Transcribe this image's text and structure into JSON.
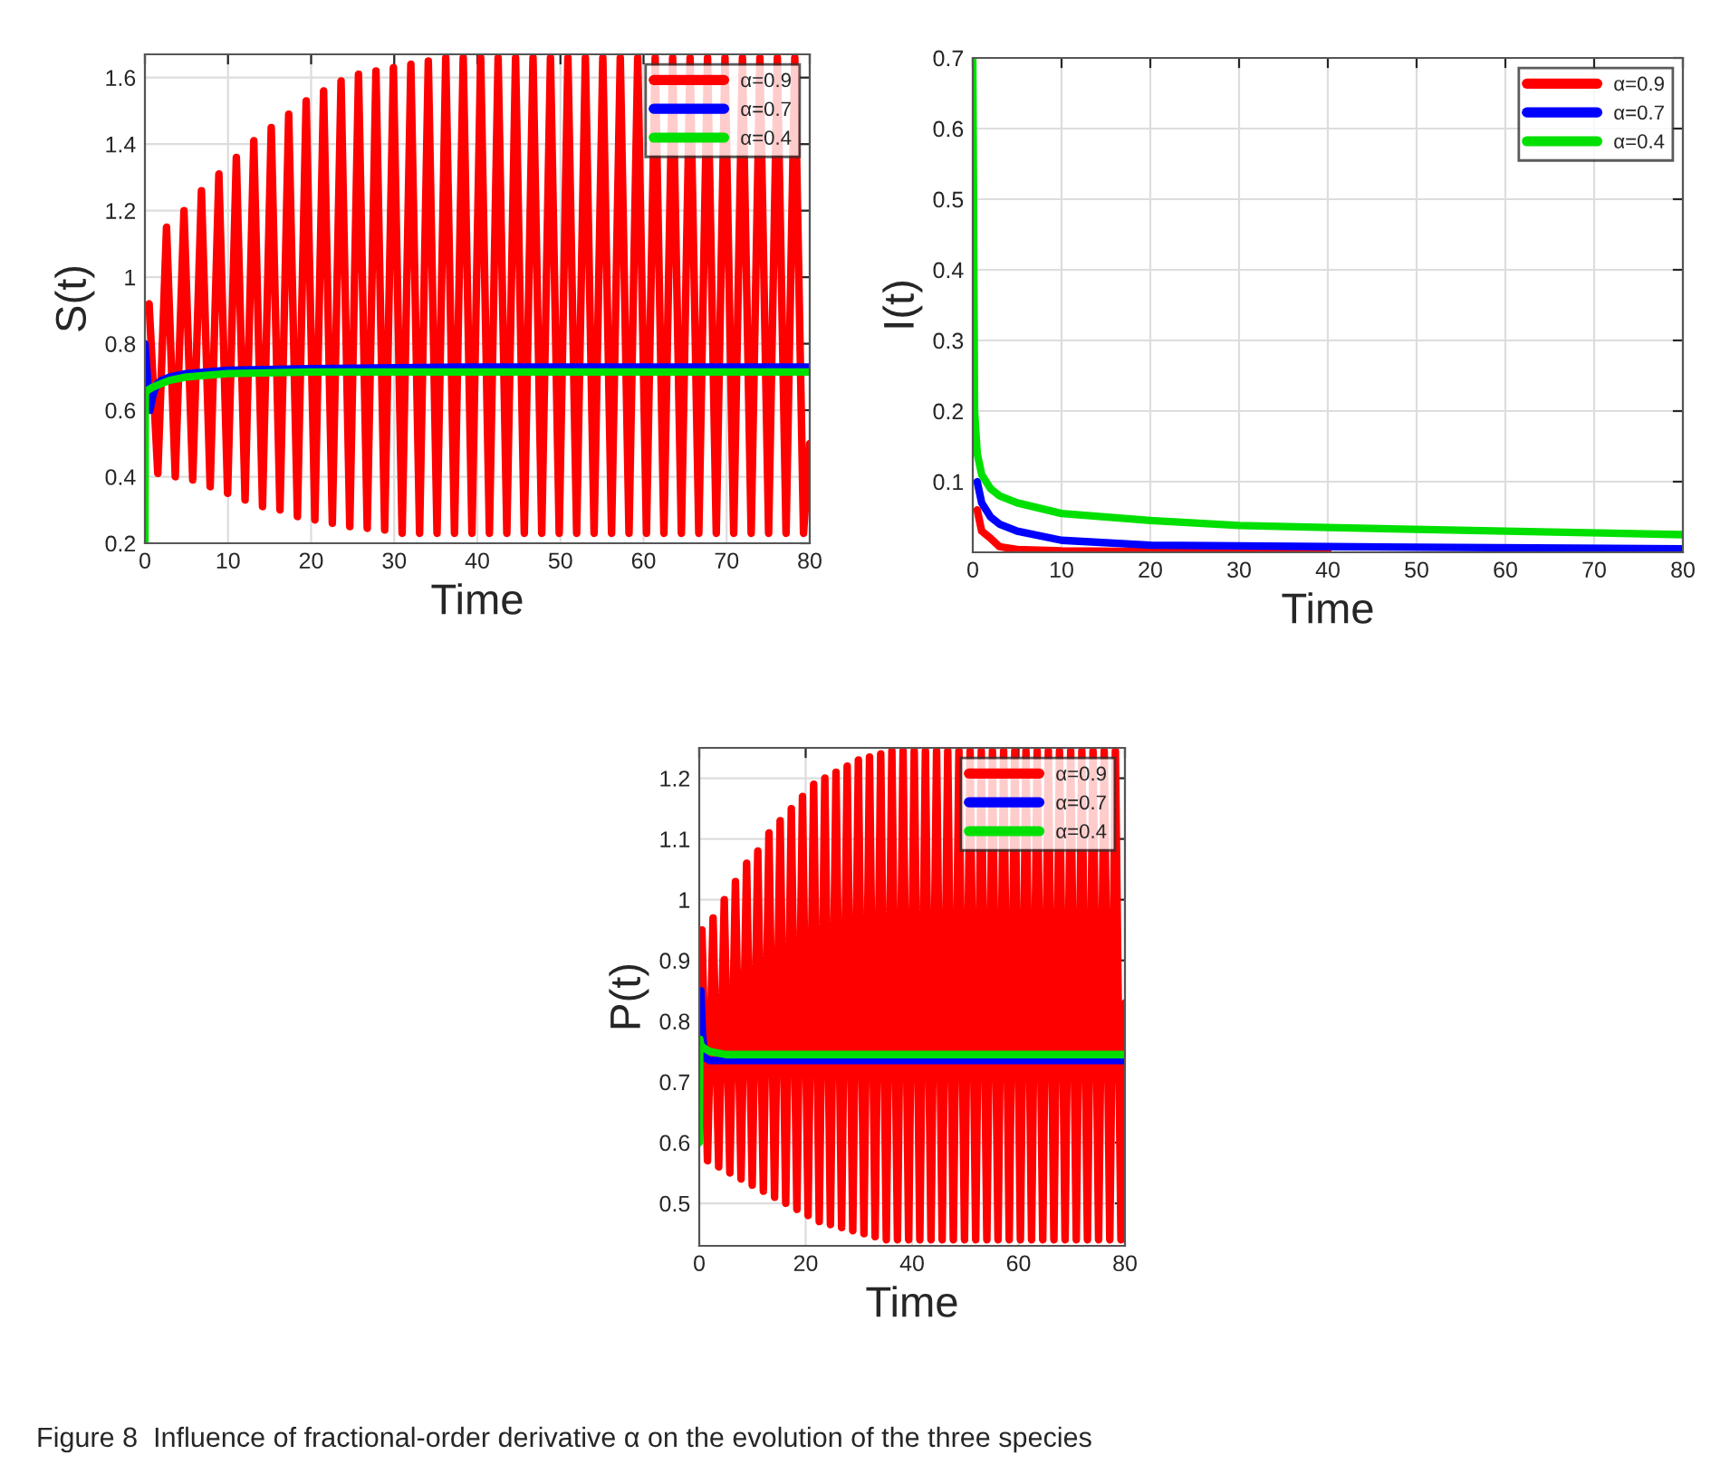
{
  "chart_data": [
    {
      "type": "line",
      "ylabel": "S(t)",
      "xlabel": "Time",
      "xlim": [
        0,
        80
      ],
      "ylim": [
        0.2,
        1.67
      ],
      "xticks": [
        0,
        10,
        20,
        30,
        40,
        50,
        60,
        70,
        80
      ],
      "yticks": [
        0.2,
        0.4,
        0.6,
        0.8,
        1,
        1.2,
        1.4,
        1.6
      ],
      "grid": true,
      "legend": "top right",
      "series": [
        {
          "name": "α=0.9",
          "color": "#ff0000",
          "x": [
            0,
            0.5,
            1.55,
            2.6,
            3.65,
            4.7,
            5.75,
            6.8,
            7.85,
            8.9,
            9.95,
            11,
            12.05,
            13.1,
            14.15,
            15.2,
            16.25,
            17.3,
            18.35,
            19.4,
            20.45,
            21.5,
            22.55,
            23.6,
            24.65,
            25.7,
            26.75,
            27.8,
            28.85,
            29.9,
            30.95,
            32,
            33.05,
            34.1,
            35.15,
            36.2,
            37.25,
            38.3,
            39.35,
            40.4,
            41.45,
            42.5,
            43.55,
            44.6,
            45.65,
            46.7,
            47.75,
            48.8,
            49.85,
            50.9,
            51.95,
            53,
            54.05,
            55.1,
            56.15,
            57.2,
            58.25,
            59.3,
            60.35,
            61.4,
            62.45,
            63.5,
            64.55,
            65.6,
            66.65,
            67.7,
            68.75,
            69.8,
            70.85,
            71.9,
            72.95,
            74,
            75.05,
            76.1,
            77.15,
            78.2,
            79.25,
            80
          ],
          "values": [
            0.9,
            0.92,
            0.41,
            1.15,
            0.4,
            1.2,
            0.39,
            1.26,
            0.37,
            1.31,
            0.35,
            1.36,
            0.33,
            1.41,
            0.31,
            1.45,
            0.3,
            1.49,
            0.28,
            1.53,
            0.27,
            1.56,
            0.26,
            1.59,
            0.25,
            1.61,
            0.245,
            1.62,
            0.24,
            1.63,
            0.23,
            1.64,
            0.23,
            1.65,
            0.23,
            1.66,
            0.23,
            1.66,
            0.23,
            1.66,
            0.23,
            1.66,
            0.23,
            1.66,
            0.23,
            1.66,
            0.23,
            1.66,
            0.23,
            1.66,
            0.23,
            1.66,
            0.23,
            1.66,
            0.23,
            1.66,
            0.23,
            1.66,
            0.23,
            1.66,
            0.23,
            1.66,
            0.23,
            1.66,
            0.23,
            1.66,
            0.23,
            1.66,
            0.23,
            1.66,
            0.23,
            1.66,
            0.23,
            1.66,
            0.23,
            1.66,
            0.23,
            0.5
          ]
        },
        {
          "name": "α=0.7",
          "color": "#0000ff",
          "x": [
            0,
            0.3,
            0.6,
            1,
            1.5,
            2,
            3,
            5,
            10,
            20,
            40,
            60,
            80
          ],
          "values": [
            0.8,
            0.7,
            0.6,
            0.65,
            0.68,
            0.69,
            0.7,
            0.71,
            0.72,
            0.725,
            0.73,
            0.73,
            0.73
          ]
        },
        {
          "name": "α=0.4",
          "color": "#00e000",
          "x": [
            0,
            0.05,
            0.3,
            1,
            2,
            3,
            5,
            10,
            20,
            40,
            80
          ],
          "values": [
            0.2,
            0.65,
            0.66,
            0.67,
            0.68,
            0.69,
            0.7,
            0.71,
            0.715,
            0.715,
            0.715
          ]
        }
      ]
    },
    {
      "type": "line",
      "ylabel": "I(t)",
      "xlabel": "Time",
      "xlim": [
        0,
        80
      ],
      "ylim": [
        0,
        0.7
      ],
      "xticks": [
        0,
        10,
        20,
        30,
        40,
        50,
        60,
        70,
        80
      ],
      "yticks": [
        0.1,
        0.2,
        0.3,
        0.4,
        0.5,
        0.6,
        0.7
      ],
      "grid": true,
      "legend": "top right",
      "series": [
        {
          "name": "α=0.9",
          "color": "#ff0000",
          "x": [
            0.5,
            1,
            2,
            3,
            5,
            10,
            20,
            40
          ],
          "values": [
            0.06,
            0.03,
            0.02,
            0.008,
            0.004,
            0.002,
            0.001,
            0.001
          ]
        },
        {
          "name": "α=0.7",
          "color": "#0000ff",
          "x": [
            0.5,
            1,
            2,
            3,
            5,
            10,
            20,
            40,
            80
          ],
          "values": [
            0.1,
            0.07,
            0.05,
            0.04,
            0.03,
            0.017,
            0.01,
            0.008,
            0.005
          ]
        },
        {
          "name": "α=0.4",
          "color": "#00e000",
          "x": [
            0,
            0.2,
            0.5,
            1,
            2,
            3,
            5,
            10,
            20,
            30,
            40,
            60,
            80
          ],
          "values": [
            0.7,
            0.2,
            0.14,
            0.11,
            0.09,
            0.08,
            0.07,
            0.055,
            0.045,
            0.038,
            0.035,
            0.03,
            0.025
          ]
        }
      ]
    },
    {
      "type": "line",
      "ylabel": "P(t)",
      "xlabel": "Time",
      "xlim": [
        0,
        80
      ],
      "ylim": [
        0.43,
        1.25
      ],
      "xticks": [
        0,
        20,
        40,
        60,
        80
      ],
      "yticks": [
        0.5,
        0.6,
        0.7,
        0.8,
        0.9,
        1,
        1.1,
        1.2
      ],
      "grid": true,
      "legend": "top right",
      "annotations": [
        "Figure 8  Influence of fractional-order derivative α on the evolution of the three species"
      ],
      "series": [
        {
          "name": "α=0.9",
          "color": "#ff0000",
          "x": [
            0,
            0.5,
            1.55,
            2.6,
            3.65,
            4.7,
            5.75,
            6.8,
            7.85,
            8.9,
            9.95,
            11,
            12.05,
            13.1,
            14.15,
            15.2,
            16.25,
            17.3,
            18.35,
            19.4,
            20.45,
            21.5,
            22.55,
            23.6,
            24.65,
            25.7,
            26.75,
            27.8,
            28.85,
            29.9,
            30.95,
            32,
            33.05,
            34.1,
            35.15,
            36.2,
            37.25,
            38.3,
            39.35,
            40.4,
            41.45,
            42.5,
            43.55,
            44.6,
            45.65,
            46.7,
            47.75,
            48.8,
            49.85,
            50.9,
            51.95,
            53,
            54.05,
            55.1,
            56.15,
            57.2,
            58.25,
            59.3,
            60.35,
            61.4,
            62.45,
            63.5,
            64.55,
            65.6,
            66.65,
            67.7,
            68.75,
            69.8,
            70.85,
            71.9,
            72.95,
            74,
            75.05,
            76.1,
            77.15,
            78.2,
            79.25,
            80
          ],
          "values": [
            0.75,
            0.95,
            0.57,
            0.97,
            0.56,
            1.0,
            0.55,
            1.03,
            0.54,
            1.06,
            0.53,
            1.08,
            0.52,
            1.11,
            0.51,
            1.13,
            0.5,
            1.15,
            0.49,
            1.17,
            0.48,
            1.19,
            0.47,
            1.2,
            0.465,
            1.21,
            0.46,
            1.22,
            0.455,
            1.23,
            0.45,
            1.235,
            0.445,
            1.24,
            0.44,
            1.245,
            0.44,
            1.245,
            0.44,
            1.245,
            0.44,
            1.245,
            0.44,
            1.245,
            0.44,
            1.245,
            0.44,
            1.245,
            0.44,
            1.245,
            0.44,
            1.245,
            0.44,
            1.245,
            0.44,
            1.245,
            0.44,
            1.245,
            0.44,
            1.245,
            0.44,
            1.245,
            0.44,
            1.245,
            0.44,
            1.245,
            0.44,
            1.245,
            0.44,
            1.245,
            0.44,
            1.245,
            0.44,
            1.245,
            0.44,
            1.245,
            0.44,
            0.83
          ]
        },
        {
          "name": "α=0.7",
          "color": "#0000ff",
          "x": [
            0,
            0.3,
            0.6,
            1,
            2,
            5,
            20,
            80
          ],
          "values": [
            0.76,
            0.85,
            0.78,
            0.74,
            0.735,
            0.735,
            0.735,
            0.735
          ]
        },
        {
          "name": "α=0.4",
          "color": "#00e000",
          "x": [
            0,
            0.1,
            0.3,
            1,
            2,
            5,
            20,
            80
          ],
          "values": [
            0.6,
            0.77,
            0.76,
            0.755,
            0.75,
            0.745,
            0.745,
            0.745
          ]
        }
      ]
    }
  ]
}
